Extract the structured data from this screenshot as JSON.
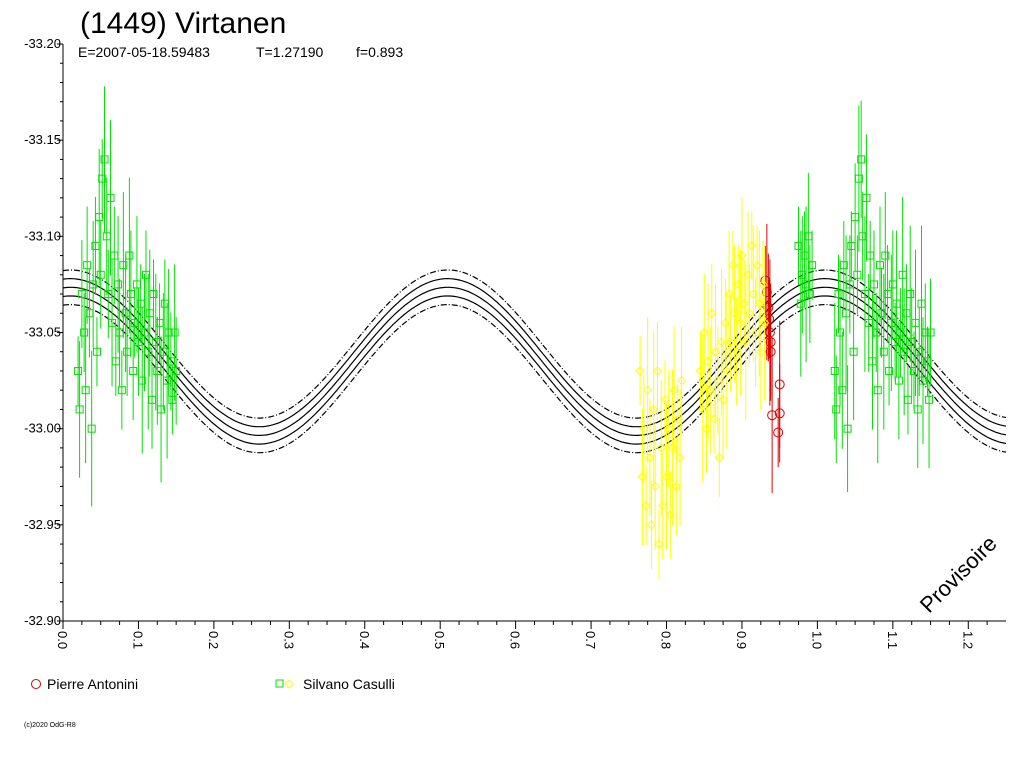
{
  "chart_data": {
    "type": "scatter",
    "title": "(1449) Virtanen",
    "subtitle": {
      "epoch": "E=2007-05-18.59483",
      "period": "T=1.27190",
      "fourier": "f=0.893"
    },
    "xlabel": "",
    "ylabel": "",
    "xlim": [
      0.0,
      1.25
    ],
    "ylim": [
      -33.2,
      -32.9
    ],
    "y_inverted": true,
    "x_ticks": [
      "0.0",
      "0.1",
      "0.2",
      "0.3",
      "0.4",
      "0.5",
      "0.6",
      "0.7",
      "0.8",
      "0.9",
      "1.0",
      "1.1",
      "1.2"
    ],
    "y_ticks": [
      "-33.20",
      "-33.15",
      "-33.10",
      "-33.05",
      "-33.00",
      "-32.95",
      "-32.90"
    ],
    "grid": false,
    "legend": [
      {
        "label": "Pierre Antonini",
        "marker": "circle",
        "color": "#e00000"
      },
      {
        "label": "Silvano Casulli",
        "marker": "square+diamond",
        "color": "#00e000",
        "color2": "#ffff00"
      }
    ],
    "fit": {
      "mean": -33.035,
      "amplitude": 0.0385,
      "phase_of_min": 0.51,
      "band": 0.0045,
      "color": "#000000"
    },
    "series": [
      {
        "name": "Pierre Antonini",
        "color": "#e00000",
        "marker": "circle",
        "points": [
          {
            "x": 0.931,
            "y": -33.077
          },
          {
            "x": 0.933,
            "y": -33.071
          },
          {
            "x": 0.935,
            "y": -33.063
          },
          {
            "x": 0.936,
            "y": -33.057
          },
          {
            "x": 0.937,
            "y": -33.05
          },
          {
            "x": 0.938,
            "y": -33.045
          },
          {
            "x": 0.938,
            "y": -33.04
          },
          {
            "x": 0.94,
            "y": -33.007
          },
          {
            "x": 0.95,
            "y": -33.023
          },
          {
            "x": 0.95,
            "y": -33.008
          },
          {
            "x": 0.948,
            "y": -32.998
          }
        ]
      },
      {
        "name": "Silvano Casulli",
        "color": "#00e000",
        "marker": "square",
        "points": [
          {
            "x": 0.02,
            "y": -33.03
          },
          {
            "x": 0.022,
            "y": -33.01
          },
          {
            "x": 0.025,
            "y": -33.07
          },
          {
            "x": 0.028,
            "y": -33.05
          },
          {
            "x": 0.03,
            "y": -33.02
          },
          {
            "x": 0.032,
            "y": -33.085
          },
          {
            "x": 0.035,
            "y": -33.06
          },
          {
            "x": 0.038,
            "y": -33.0
          },
          {
            "x": 0.04,
            "y": -33.075
          },
          {
            "x": 0.043,
            "y": -33.095
          },
          {
            "x": 0.045,
            "y": -33.04
          },
          {
            "x": 0.048,
            "y": -33.11
          },
          {
            "x": 0.05,
            "y": -33.08
          },
          {
            "x": 0.052,
            "y": -33.13
          },
          {
            "x": 0.055,
            "y": -33.14
          },
          {
            "x": 0.058,
            "y": -33.1
          },
          {
            "x": 0.06,
            "y": -33.07
          },
          {
            "x": 0.063,
            "y": -33.12
          },
          {
            "x": 0.065,
            "y": -33.055
          },
          {
            "x": 0.068,
            "y": -33.09
          },
          {
            "x": 0.07,
            "y": -33.035
          },
          {
            "x": 0.073,
            "y": -33.075
          },
          {
            "x": 0.075,
            "y": -33.05
          },
          {
            "x": 0.078,
            "y": -33.02
          },
          {
            "x": 0.08,
            "y": -33.085
          },
          {
            "x": 0.083,
            "y": -33.06
          },
          {
            "x": 0.085,
            "y": -33.04
          },
          {
            "x": 0.088,
            "y": -33.09
          },
          {
            "x": 0.09,
            "y": -33.07
          },
          {
            "x": 0.093,
            "y": -33.03
          },
          {
            "x": 0.095,
            "y": -33.055
          },
          {
            "x": 0.098,
            "y": -33.075
          },
          {
            "x": 0.1,
            "y": -33.045
          },
          {
            "x": 0.103,
            "y": -33.065
          },
          {
            "x": 0.105,
            "y": -33.025
          },
          {
            "x": 0.108,
            "y": -33.05
          },
          {
            "x": 0.11,
            "y": -33.08
          },
          {
            "x": 0.113,
            "y": -33.04
          },
          {
            "x": 0.115,
            "y": -33.06
          },
          {
            "x": 0.118,
            "y": -33.015
          },
          {
            "x": 0.12,
            "y": -33.07
          },
          {
            "x": 0.123,
            "y": -33.045
          },
          {
            "x": 0.125,
            "y": -33.03
          },
          {
            "x": 0.128,
            "y": -33.055
          },
          {
            "x": 0.13,
            "y": -33.01
          },
          {
            "x": 0.133,
            "y": -33.04
          },
          {
            "x": 0.135,
            "y": -33.065
          },
          {
            "x": 0.138,
            "y": -33.025
          },
          {
            "x": 0.14,
            "y": -33.05
          },
          {
            "x": 0.143,
            "y": -33.035
          },
          {
            "x": 0.145,
            "y": -33.015
          },
          {
            "x": 0.148,
            "y": -33.05
          },
          {
            "x": 0.15,
            "y": -33.03
          },
          {
            "x": 0.975,
            "y": -33.095
          },
          {
            "x": 0.978,
            "y": -33.065
          },
          {
            "x": 0.98,
            "y": -33.08
          },
          {
            "x": 0.983,
            "y": -33.09
          },
          {
            "x": 0.985,
            "y": -33.075
          },
          {
            "x": 0.988,
            "y": -33.1
          },
          {
            "x": 0.99,
            "y": -33.07
          },
          {
            "x": 0.993,
            "y": -33.085
          },
          {
            "x": 1.023,
            "y": -33.03
          },
          {
            "x": 1.025,
            "y": -33.01
          },
          {
            "x": 1.028,
            "y": -33.07
          },
          {
            "x": 1.03,
            "y": -33.05
          },
          {
            "x": 1.033,
            "y": -33.02
          },
          {
            "x": 1.035,
            "y": -33.085
          },
          {
            "x": 1.038,
            "y": -33.06
          },
          {
            "x": 1.04,
            "y": -33.0
          },
          {
            "x": 1.043,
            "y": -33.075
          },
          {
            "x": 1.045,
            "y": -33.095
          },
          {
            "x": 1.048,
            "y": -33.04
          },
          {
            "x": 1.05,
            "y": -33.11
          },
          {
            "x": 1.053,
            "y": -33.08
          },
          {
            "x": 1.055,
            "y": -33.13
          },
          {
            "x": 1.058,
            "y": -33.14
          },
          {
            "x": 1.06,
            "y": -33.1
          },
          {
            "x": 1.063,
            "y": -33.07
          },
          {
            "x": 1.065,
            "y": -33.12
          },
          {
            "x": 1.068,
            "y": -33.055
          },
          {
            "x": 1.07,
            "y": -33.09
          },
          {
            "x": 1.073,
            "y": -33.035
          },
          {
            "x": 1.075,
            "y": -33.075
          },
          {
            "x": 1.078,
            "y": -33.05
          },
          {
            "x": 1.08,
            "y": -33.02
          },
          {
            "x": 1.083,
            "y": -33.085
          },
          {
            "x": 1.085,
            "y": -33.06
          },
          {
            "x": 1.088,
            "y": -33.04
          },
          {
            "x": 1.09,
            "y": -33.09
          },
          {
            "x": 1.093,
            "y": -33.07
          },
          {
            "x": 1.095,
            "y": -33.03
          },
          {
            "x": 1.098,
            "y": -33.055
          },
          {
            "x": 1.1,
            "y": -33.075
          },
          {
            "x": 1.103,
            "y": -33.045
          },
          {
            "x": 1.105,
            "y": -33.065
          },
          {
            "x": 1.108,
            "y": -33.025
          },
          {
            "x": 1.11,
            "y": -33.05
          },
          {
            "x": 1.113,
            "y": -33.08
          },
          {
            "x": 1.115,
            "y": -33.04
          },
          {
            "x": 1.118,
            "y": -33.06
          },
          {
            "x": 1.12,
            "y": -33.015
          },
          {
            "x": 1.123,
            "y": -33.07
          },
          {
            "x": 1.125,
            "y": -33.045
          },
          {
            "x": 1.128,
            "y": -33.03
          },
          {
            "x": 1.13,
            "y": -33.055
          },
          {
            "x": 1.133,
            "y": -33.01
          },
          {
            "x": 1.135,
            "y": -33.04
          },
          {
            "x": 1.138,
            "y": -33.065
          },
          {
            "x": 1.14,
            "y": -33.025
          },
          {
            "x": 1.143,
            "y": -33.05
          },
          {
            "x": 1.146,
            "y": -33.035
          },
          {
            "x": 1.148,
            "y": -33.015
          },
          {
            "x": 1.15,
            "y": -33.05
          }
        ]
      },
      {
        "name": "Silvano Casulli",
        "color": "#ffff00",
        "marker": "diamond",
        "points": [
          {
            "x": 0.765,
            "y": -33.03
          },
          {
            "x": 0.768,
            "y": -32.975
          },
          {
            "x": 0.77,
            "y": -33.0
          },
          {
            "x": 0.773,
            "y": -32.96
          },
          {
            "x": 0.775,
            "y": -33.02
          },
          {
            "x": 0.778,
            "y": -32.985
          },
          {
            "x": 0.78,
            "y": -32.95
          },
          {
            "x": 0.783,
            "y": -33.01
          },
          {
            "x": 0.785,
            "y": -32.97
          },
          {
            "x": 0.788,
            "y": -33.03
          },
          {
            "x": 0.79,
            "y": -32.94
          },
          {
            "x": 0.793,
            "y": -32.99
          },
          {
            "x": 0.795,
            "y": -32.96
          },
          {
            "x": 0.798,
            "y": -33.015
          },
          {
            "x": 0.8,
            "y": -32.975
          },
          {
            "x": 0.803,
            "y": -33.0
          },
          {
            "x": 0.805,
            "y": -32.955
          },
          {
            "x": 0.808,
            "y": -32.99
          },
          {
            "x": 0.81,
            "y": -33.02
          },
          {
            "x": 0.813,
            "y": -32.97
          },
          {
            "x": 0.815,
            "y": -33.005
          },
          {
            "x": 0.818,
            "y": -32.985
          },
          {
            "x": 0.82,
            "y": -33.025
          },
          {
            "x": 0.845,
            "y": -33.03
          },
          {
            "x": 0.848,
            "y": -33.01
          },
          {
            "x": 0.85,
            "y": -33.05
          },
          {
            "x": 0.853,
            "y": -33.0
          },
          {
            "x": 0.855,
            "y": -33.035
          },
          {
            "x": 0.858,
            "y": -33.02
          },
          {
            "x": 0.86,
            "y": -33.06
          },
          {
            "x": 0.863,
            "y": -33.005
          },
          {
            "x": 0.865,
            "y": -33.04
          },
          {
            "x": 0.868,
            "y": -33.025
          },
          {
            "x": 0.87,
            "y": -32.985
          },
          {
            "x": 0.873,
            "y": -33.045
          },
          {
            "x": 0.875,
            "y": -33.015
          },
          {
            "x": 0.878,
            "y": -33.055
          },
          {
            "x": 0.88,
            "y": -33.03
          },
          {
            "x": 0.883,
            "y": -33.07
          },
          {
            "x": 0.885,
            "y": -33.045
          },
          {
            "x": 0.888,
            "y": -33.085
          },
          {
            "x": 0.89,
            "y": -33.06
          },
          {
            "x": 0.893,
            "y": -33.04
          },
          {
            "x": 0.895,
            "y": -33.075
          },
          {
            "x": 0.898,
            "y": -33.055
          },
          {
            "x": 0.9,
            "y": -33.09
          },
          {
            "x": 0.903,
            "y": -33.065
          },
          {
            "x": 0.905,
            "y": -33.045
          },
          {
            "x": 0.908,
            "y": -33.08
          },
          {
            "x": 0.91,
            "y": -33.06
          },
          {
            "x": 0.913,
            "y": -33.095
          },
          {
            "x": 0.915,
            "y": -33.07
          },
          {
            "x": 0.918,
            "y": -33.05
          },
          {
            "x": 0.92,
            "y": -33.085
          },
          {
            "x": 0.923,
            "y": -33.065
          },
          {
            "x": 0.925,
            "y": -33.04
          },
          {
            "x": 0.928,
            "y": -33.075
          },
          {
            "x": 0.93,
            "y": -33.055
          }
        ]
      }
    ],
    "error_bar": 0.03,
    "watermark": "Provisoire",
    "copyright": "(c)2020 OdG-R8"
  }
}
